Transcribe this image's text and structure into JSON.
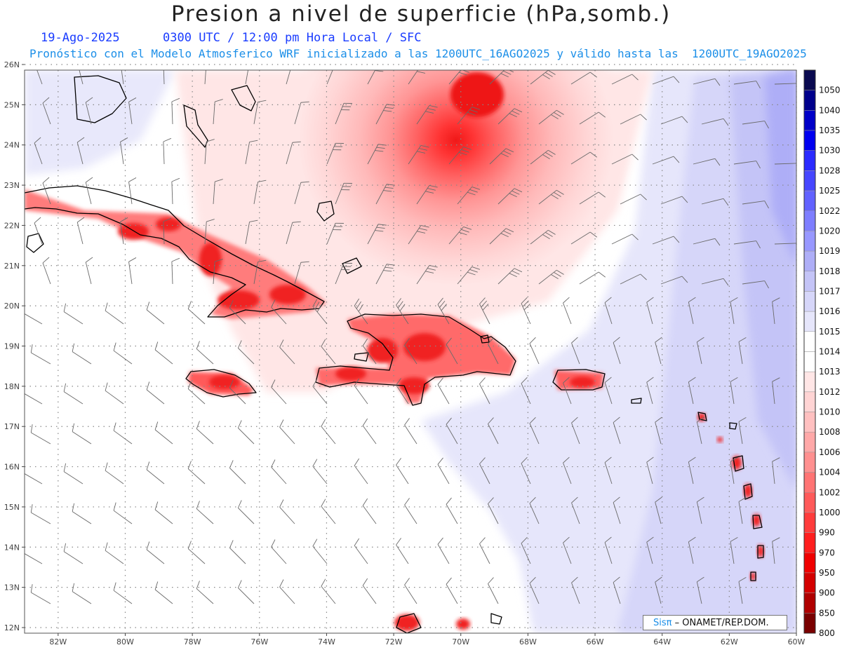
{
  "header": {
    "title": "Presion a nivel de superficie (hPa,somb.)",
    "date": "19-Ago-2025",
    "time_line": "0300 UTC / 12:00 pm Hora Local / SFC",
    "forecast_line": "Pronóstico con el Modelo Atmosferico WRF inicializado a las 1200UTC_16AGO2025 y válido hasta las  1200UTC_19AGO2025"
  },
  "map": {
    "lat_labels": [
      "26N",
      "25N",
      "24N",
      "23N",
      "22N",
      "21N",
      "20N",
      "19N",
      "18N",
      "17N",
      "16N",
      "15N",
      "14N",
      "13N",
      "12N"
    ],
    "lon_labels": [
      "82W",
      "80W",
      "78W",
      "76W",
      "74W",
      "72W",
      "70W",
      "68W",
      "66W",
      "64W",
      "62W",
      "60W"
    ],
    "lat_range": [
      12,
      26
    ],
    "lon_range": [
      -83,
      -60
    ],
    "grid": true
  },
  "colorbar": {
    "levels": [
      "1050",
      "1040",
      "1035",
      "1030",
      "1028",
      "1025",
      "1022",
      "1020",
      "1019",
      "1018",
      "1017",
      "1016",
      "1015",
      "1014",
      "1013",
      "1012",
      "1010",
      "1008",
      "1006",
      "1004",
      "1002",
      "1000",
      "990",
      "970",
      "950",
      "900",
      "850",
      "800"
    ],
    "colors": [
      "#0a0a50",
      "#00008c",
      "#0000c8",
      "#0000f0",
      "#2a2aff",
      "#4646ff",
      "#6262ff",
      "#7e7eff",
      "#9898ff",
      "#aeaef7",
      "#c4c4f7",
      "#d6d6f9",
      "#e6e6fb",
      "#ffffff",
      "#ffffff",
      "#ffe6e6",
      "#ffd4d4",
      "#ffc0c0",
      "#ffa8a8",
      "#ff9090",
      "#ff7474",
      "#ff5a5a",
      "#ff3c3c",
      "#ff1e1e",
      "#f00000",
      "#d40000",
      "#b00000",
      "#7a0000"
    ]
  },
  "credit": {
    "logo": "Sisπ",
    "text": "– ONAMET/REP.DOM."
  }
}
